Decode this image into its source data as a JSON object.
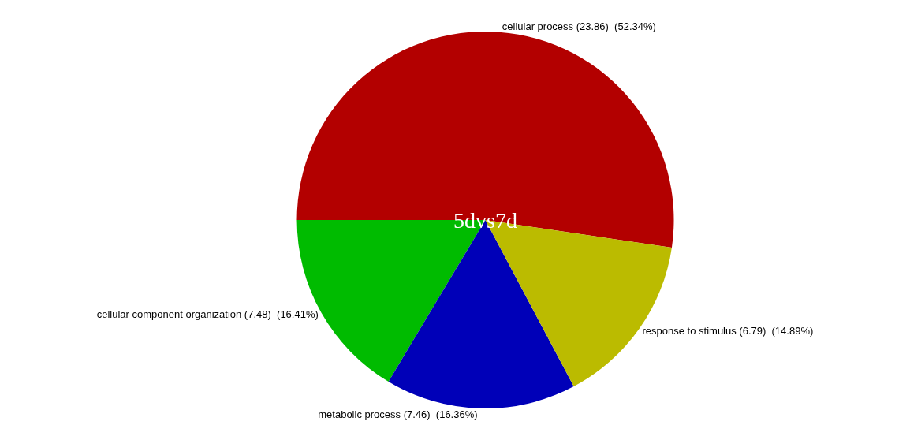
{
  "chart_data": {
    "type": "pie",
    "categories": [
      "cellular process",
      "cellular component organization",
      "metabolic process",
      "response to stimulus"
    ],
    "values": [
      23.86,
      7.48,
      7.46,
      6.79
    ],
    "value_labels": [
      "(23.86)  (52.34%)",
      "(7.48)  (16.41%)",
      "(7.46)  (16.36%)",
      "(6.79)  (14.89%)"
    ],
    "colors": [
      "#b30000",
      "#00bb00",
      "#0000b8",
      "#bbbb00"
    ],
    "annotations": [
      "5dvs7d"
    ],
    "legend": false
  }
}
